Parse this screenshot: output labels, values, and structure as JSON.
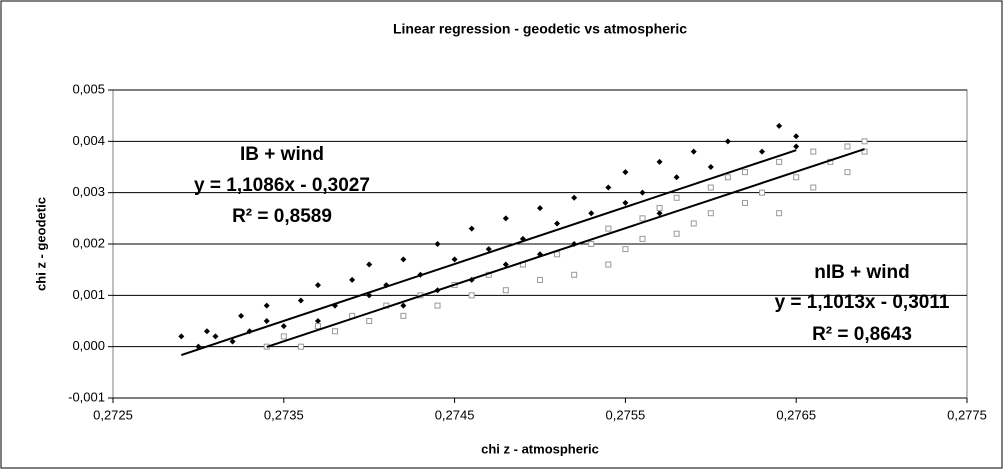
{
  "chart_data": {
    "type": "scatter",
    "title": "Linear regression - geodetic vs atmospheric",
    "x_label": "chi z - atmospheric",
    "y_label": "chi z - geodetic",
    "xlim": [
      0.2725,
      0.2775
    ],
    "xticks": [
      {
        "value": 0.2725,
        "label": "0,2725"
      },
      {
        "value": 0.2735,
        "label": "0,2735"
      },
      {
        "value": 0.2745,
        "label": "0,2745"
      },
      {
        "value": 0.2755,
        "label": "0,2755"
      },
      {
        "value": 0.2765,
        "label": "0,2765"
      },
      {
        "value": 0.2775,
        "label": "0,2775"
      }
    ],
    "ylim": [
      -0.001,
      0.005
    ],
    "yticks": [
      {
        "value": -0.001,
        "label": "-0,001"
      },
      {
        "value": 0,
        "label": "0,000"
      },
      {
        "value": 0.001,
        "label": "0,001"
      },
      {
        "value": 0.002,
        "label": "0,002"
      },
      {
        "value": 0.003,
        "label": "0,003"
      },
      {
        "value": 0.004,
        "label": "0,004"
      },
      {
        "value": 0.005,
        "label": "0,005"
      }
    ],
    "grid": true,
    "series": [
      {
        "name": "IB + wind",
        "color": "#000000",
        "marker": "diamond",
        "x": [
          0.2729,
          0.273,
          0.27305,
          0.2731,
          0.2732,
          0.27325,
          0.2733,
          0.2734,
          0.2734,
          0.2735,
          0.2736,
          0.2737,
          0.2737,
          0.2738,
          0.2739,
          0.274,
          0.274,
          0.2741,
          0.2742,
          0.2742,
          0.2743,
          0.2744,
          0.2744,
          0.2745,
          0.2746,
          0.2746,
          0.2747,
          0.2748,
          0.2748,
          0.2749,
          0.275,
          0.275,
          0.2751,
          0.2752,
          0.2752,
          0.2753,
          0.2754,
          0.2754,
          0.2755,
          0.2755,
          0.2756,
          0.2757,
          0.2757,
          0.2758,
          0.2759,
          0.276,
          0.276,
          0.2761,
          0.2762,
          0.2763,
          0.2764,
          0.2764,
          0.2765,
          0.2765
        ],
        "values": [
          0.0002,
          0.0,
          0.0003,
          0.0002,
          0.0001,
          0.0006,
          0.0003,
          0.0005,
          0.0008,
          0.0004,
          0.0009,
          0.0012,
          0.0005,
          0.0008,
          0.0013,
          0.001,
          0.0016,
          0.0012,
          0.0017,
          0.0008,
          0.0014,
          0.002,
          0.0011,
          0.0017,
          0.0023,
          0.0013,
          0.0019,
          0.0025,
          0.0016,
          0.0021,
          0.0027,
          0.0018,
          0.0024,
          0.0029,
          0.002,
          0.0026,
          0.0031,
          0.0023,
          0.0034,
          0.0028,
          0.003,
          0.0036,
          0.0026,
          0.0033,
          0.0038,
          0.0031,
          0.0035,
          0.004,
          0.0034,
          0.0038,
          0.0043,
          0.0036,
          0.0039,
          0.0041
        ],
        "trendline": {
          "slope": 1.1086,
          "intercept": -0.3027,
          "equation": "y = 1,1086x - 0,3027",
          "r_squared": "R² = 0,8589"
        }
      },
      {
        "name": "nIB + wind",
        "color": "#999999",
        "marker": "square",
        "x": [
          0.2734,
          0.2735,
          0.2736,
          0.2737,
          0.2738,
          0.2739,
          0.274,
          0.2741,
          0.2742,
          0.2743,
          0.2744,
          0.2745,
          0.2746,
          0.2747,
          0.2748,
          0.2749,
          0.275,
          0.2751,
          0.2752,
          0.2753,
          0.2754,
          0.2754,
          0.2755,
          0.2756,
          0.2756,
          0.2757,
          0.2758,
          0.2758,
          0.2759,
          0.276,
          0.276,
          0.2761,
          0.2762,
          0.2762,
          0.2763,
          0.2764,
          0.2764,
          0.2765,
          0.2766,
          0.2766,
          0.2767,
          0.2768,
          0.2768,
          0.2769,
          0.2769
        ],
        "values": [
          0.0,
          0.0002,
          0.0,
          0.0004,
          0.0003,
          0.0006,
          0.0005,
          0.0008,
          0.0006,
          0.001,
          0.0008,
          0.0012,
          0.001,
          0.0014,
          0.0011,
          0.0016,
          0.0013,
          0.0018,
          0.0014,
          0.002,
          0.0016,
          0.0023,
          0.0019,
          0.0025,
          0.0021,
          0.0027,
          0.0022,
          0.0029,
          0.0024,
          0.0031,
          0.0026,
          0.0033,
          0.0028,
          0.0034,
          0.003,
          0.0036,
          0.0026,
          0.0033,
          0.0038,
          0.0031,
          0.0036,
          0.0039,
          0.0034,
          0.004,
          0.0038
        ],
        "trendline": {
          "slope": 1.1013,
          "intercept": -0.3011,
          "equation": "y = 1,1013x - 0,3011",
          "r_squared": "R² = 0,8643"
        }
      }
    ]
  }
}
